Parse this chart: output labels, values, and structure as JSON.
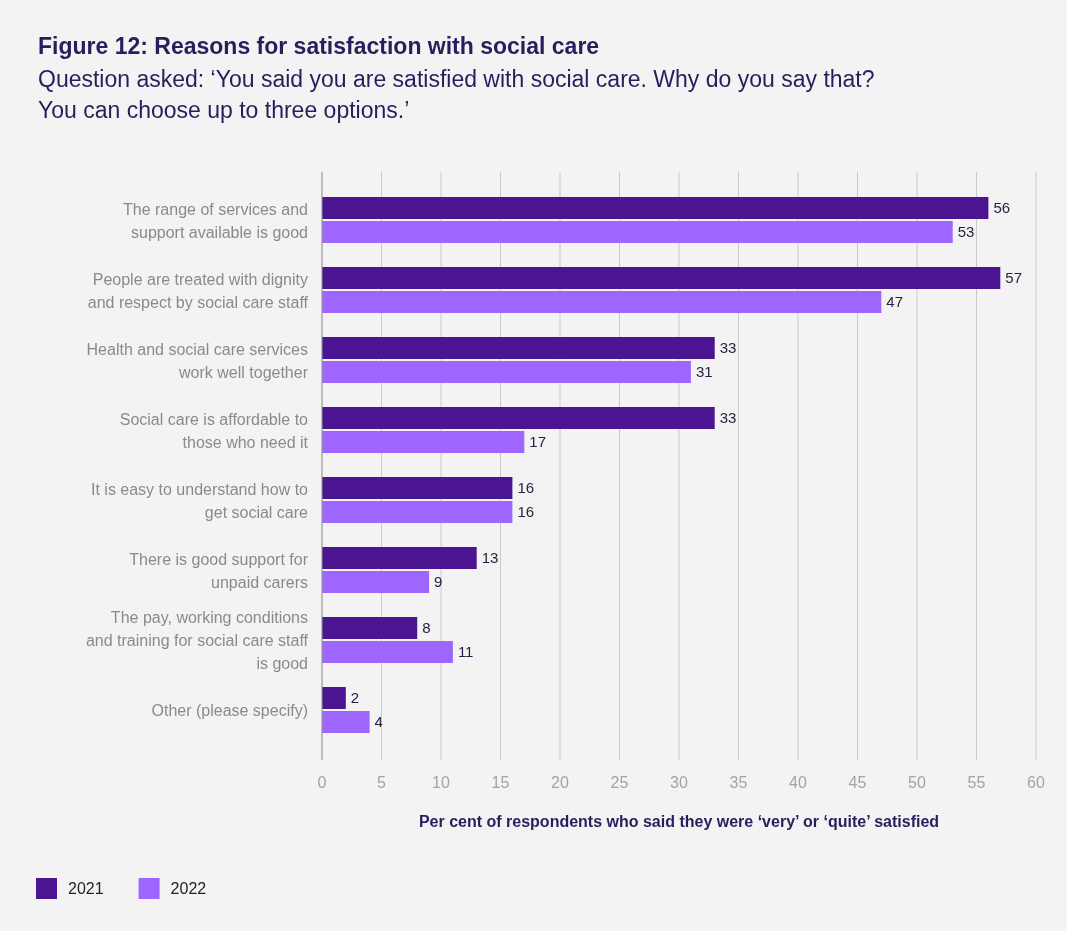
{
  "chart_data": {
    "type": "bar",
    "orientation": "horizontal",
    "title": "Figure 12: Reasons for satisfaction with social care",
    "subtitle": "Question asked: ‘You said you are satisfied with social care. Why do you say that? You can choose up to three options.’",
    "xlabel": "Per cent of respondents who said they were ‘very’ or ‘quite’ satisfied",
    "categories": [
      "The range of services and support available is good",
      "People are treated with dignity and respect by social care staff",
      "Health and social care services work well together",
      "Social care is affordable to those who need it",
      "It is easy to understand how to get social care",
      "There is good support for unpaid carers",
      "The pay, working conditions and training for social care staff is good",
      "Other (please specify)"
    ],
    "series": [
      {
        "name": "2021",
        "color": "#4b1490",
        "values": [
          56,
          57,
          33,
          33,
          16,
          13,
          8,
          2
        ]
      },
      {
        "name": "2022",
        "color": "#9f66ff",
        "values": [
          53,
          47,
          31,
          17,
          16,
          9,
          11,
          4
        ]
      }
    ],
    "xlim": [
      0,
      60
    ],
    "xticks": [
      0,
      5,
      10,
      15,
      20,
      25,
      30,
      35,
      40,
      45,
      50,
      55,
      60
    ],
    "grid": "x",
    "legend": "bottom left",
    "data_labels": true
  }
}
